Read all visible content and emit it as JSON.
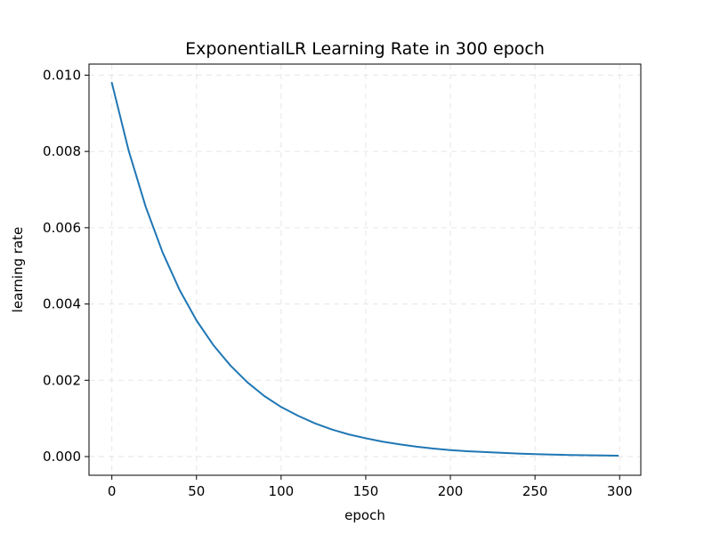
{
  "chart_data": {
    "type": "line",
    "title": "ExponentialLR Learning Rate in 300 epoch",
    "xlabel": "epoch",
    "ylabel": "learning rate",
    "xlim": [
      -13.5,
      312.5
    ],
    "ylim": [
      -0.00049,
      0.01029
    ],
    "x_ticks": [
      0,
      50,
      100,
      150,
      200,
      250,
      300
    ],
    "y_ticks": [
      0.0,
      0.002,
      0.004,
      0.006,
      0.008,
      0.01
    ],
    "y_tick_labels": [
      "0.000",
      "0.002",
      "0.004",
      "0.006",
      "0.008",
      "0.010"
    ],
    "grid": true,
    "legend": "none",
    "series": [
      {
        "color": "#1f77b4",
        "x": [
          0,
          10,
          20,
          30,
          40,
          50,
          60,
          70,
          80,
          90,
          100,
          110,
          120,
          130,
          140,
          150,
          160,
          170,
          180,
          190,
          200,
          210,
          220,
          230,
          240,
          250,
          260,
          270,
          280,
          290,
          299
        ],
        "y": [
          0.0098,
          0.00801,
          0.00655,
          0.00535,
          0.00437,
          0.00357,
          0.00292,
          0.00239,
          0.00195,
          0.00159,
          0.0013,
          0.00107,
          0.00087,
          0.00071,
          0.00058,
          0.00048,
          0.00039,
          0.00032,
          0.00026,
          0.00021,
          0.00017,
          0.00014,
          0.00012,
          0.0001,
          8e-05,
          6.3e-05,
          5.2e-05,
          4.2e-05,
          3.4e-05,
          2.8e-05,
          2.4e-05
        ]
      }
    ]
  }
}
